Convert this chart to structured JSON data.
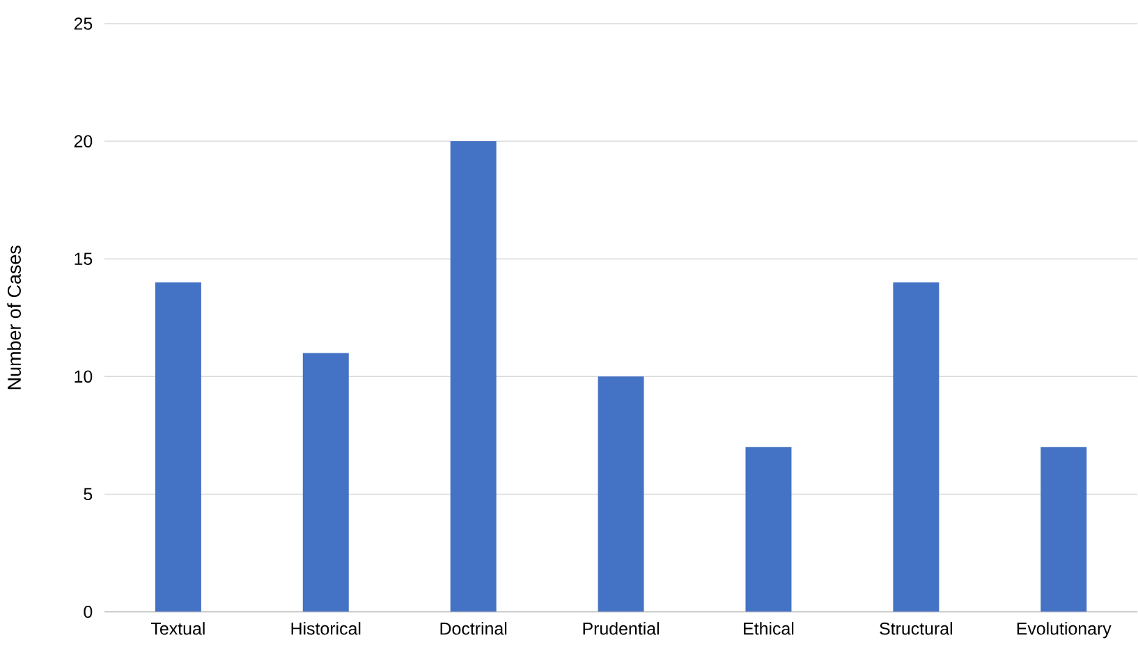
{
  "chart_data": {
    "type": "bar",
    "ylabel": "Number of Cases",
    "categories": [
      "Textual",
      "Historical",
      "Doctrinal",
      "Prudential",
      "Ethical",
      "Structural",
      "Evolutionary"
    ],
    "values": [
      14,
      11,
      20,
      10,
      7,
      14,
      7
    ],
    "color": "#4472c4",
    "ylim": [
      0,
      25
    ],
    "yticks": [
      0,
      5,
      10,
      15,
      20,
      25
    ],
    "grid": "y"
  }
}
